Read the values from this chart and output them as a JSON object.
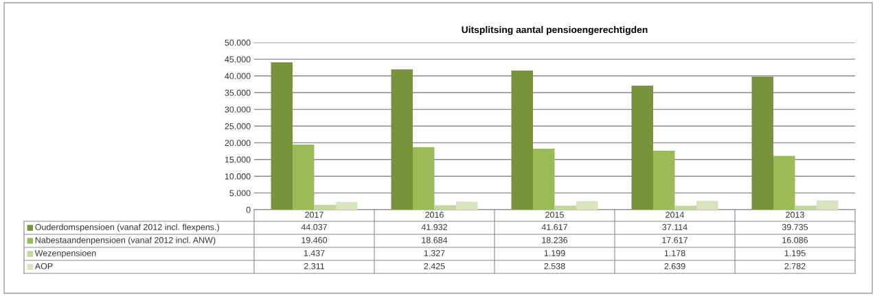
{
  "chart_data": {
    "type": "bar",
    "title": "Uitsplitsing aantal pensioengerechtigden",
    "categories": [
      "2017",
      "2016",
      "2015",
      "2014",
      "2013"
    ],
    "series": [
      {
        "name": "Ouderdomspensioen (vanaf 2012 incl. flexpens.)",
        "color": "#77933c",
        "values": [
          44037,
          41932,
          41617,
          37114,
          39735
        ],
        "value_labels": [
          "44.037",
          "41.932",
          "41.617",
          "37.114",
          "39.735"
        ]
      },
      {
        "name": "Nabestaandenpensioen (vanaf 2012 incl. ANW)",
        "color": "#9bbb59",
        "values": [
          19460,
          18684,
          18236,
          17617,
          16086
        ],
        "value_labels": [
          "19.460",
          "18.684",
          "18.236",
          "17.617",
          "16.086"
        ]
      },
      {
        "name": "Wezenpensioen",
        "color": "#c3d69b",
        "values": [
          1437,
          1327,
          1199,
          1178,
          1195
        ],
        "value_labels": [
          "1.437",
          "1.327",
          "1.199",
          "1.178",
          "1.195"
        ]
      },
      {
        "name": "AOP",
        "color": "#d7e4bd",
        "values": [
          2311,
          2425,
          2538,
          2639,
          2782
        ],
        "value_labels": [
          "2.311",
          "2.425",
          "2.538",
          "2.639",
          "2.782"
        ]
      }
    ],
    "ylim": [
      0,
      50000
    ],
    "yticks": [
      0,
      {
        "value": 5000,
        "label": "5.000"
      },
      {
        "value": 10000,
        "label": "10.000"
      },
      {
        "value": 15000,
        "label": "15.000"
      },
      {
        "value": 20000,
        "label": "20.000"
      },
      {
        "value": 25000,
        "label": "25.000"
      },
      {
        "value": 30000,
        "label": "30.000"
      },
      {
        "value": 35000,
        "label": "35.000"
      },
      {
        "value": 40000,
        "label": "40.000"
      },
      {
        "value": 45000,
        "label": "45.000"
      },
      {
        "value": 50000,
        "label": "50.000"
      }
    ],
    "grid": "y",
    "legend": "left"
  }
}
